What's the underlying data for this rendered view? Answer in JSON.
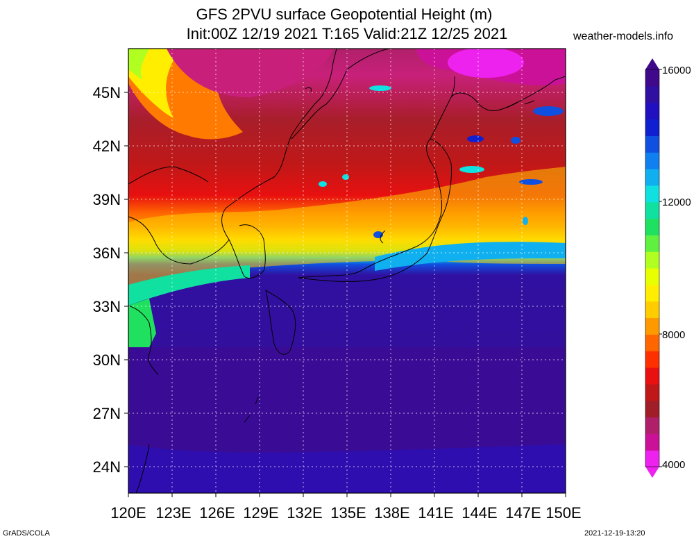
{
  "title_line1": "GFS 2PVU surface Geopotential Height (m)",
  "title_line2": "Init:00Z 12/19 2021 T:165 Valid:21Z 12/25 2021",
  "brand": "weather-models.info",
  "footer_left": "GrADS/COLA",
  "footer_right": "2021-12-19-13:20",
  "map": {
    "lon_ticks": [
      "120E",
      "123E",
      "126E",
      "129E",
      "132E",
      "135E",
      "138E",
      "141E",
      "144E",
      "147E",
      "150E"
    ],
    "lat_ticks": [
      "45N",
      "42N",
      "39N",
      "36N",
      "33N",
      "30N",
      "27N",
      "24N"
    ],
    "lon_range": [
      120,
      150
    ],
    "lat_range": [
      22.5,
      47.5
    ],
    "grid": true
  },
  "colorbar": {
    "labels": [
      "16000",
      "12000",
      "8000",
      "4000"
    ],
    "min": 4000,
    "max": 16000,
    "colors": [
      "#ee22ee",
      "#cc1199",
      "#b0206a",
      "#a01e28",
      "#c01818",
      "#e81010",
      "#ff3000",
      "#ff6600",
      "#ff9900",
      "#ffcc00",
      "#ffee00",
      "#e8ff00",
      "#b0ff20",
      "#60f040",
      "#20e060",
      "#10e0a0",
      "#10e0e0",
      "#10b0f0",
      "#1080f0",
      "#1050e0",
      "#1020d0",
      "#2010c0",
      "#3010a0",
      "#40088a"
    ]
  }
}
